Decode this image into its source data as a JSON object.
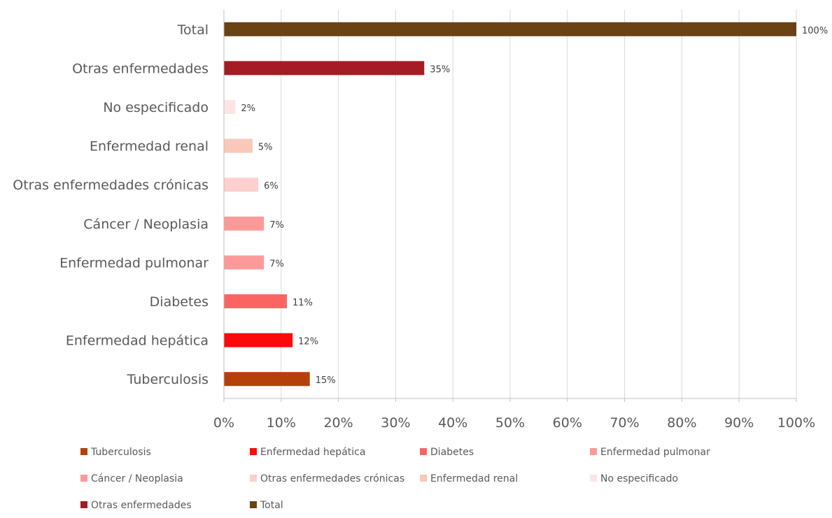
{
  "chart_data": {
    "type": "bar",
    "orientation": "horizontal",
    "categories": [
      "Total",
      "Otras enfermedades",
      "No especificado",
      "Enfermedad renal",
      "Otras enfermedades crónicas",
      "Cáncer / Neoplasia",
      "Enfermedad pulmonar",
      "Diabetes",
      "Enfermedad hepática",
      "Tuberculosis"
    ],
    "values": [
      100,
      35,
      2,
      5,
      6,
      7,
      7,
      11,
      12,
      15
    ],
    "value_labels": [
      "100%",
      "35%",
      "2%",
      "5%",
      "6%",
      "7%",
      "7%",
      "11%",
      "12%",
      "15%"
    ],
    "colors": [
      "#6b4213",
      "#a61c24",
      "#fde4e4",
      "#f8c8b8",
      "#fdcfcf",
      "#fc9a9a",
      "#fc9a9a",
      "#fc6464",
      "#fa0a0a",
      "#b5400c"
    ],
    "xlim": [
      0,
      100
    ],
    "xticks": [
      "0%",
      "10%",
      "20%",
      "30%",
      "40%",
      "50%",
      "60%",
      "70%",
      "80%",
      "90%",
      "100%"
    ],
    "grid": true,
    "legend_position": "bottom",
    "legend": [
      {
        "label": "Tuberculosis",
        "color": "#b5400c"
      },
      {
        "label": "Enfermedad hepática",
        "color": "#fa0a0a"
      },
      {
        "label": "Diabetes",
        "color": "#fc6464"
      },
      {
        "label": "Enfermedad pulmonar",
        "color": "#fc9a9a"
      },
      {
        "label": "Cáncer / Neoplasia",
        "color": "#fc9a9a"
      },
      {
        "label": "Otras enfermedades crónicas",
        "color": "#fdcfcf"
      },
      {
        "label": "Enfermedad renal",
        "color": "#f8c8b8"
      },
      {
        "label": "No especificado",
        "color": "#fde4e4"
      },
      {
        "label": "Otras enfermedades",
        "color": "#a61c24"
      },
      {
        "label": "Total",
        "color": "#6b4213"
      }
    ]
  }
}
